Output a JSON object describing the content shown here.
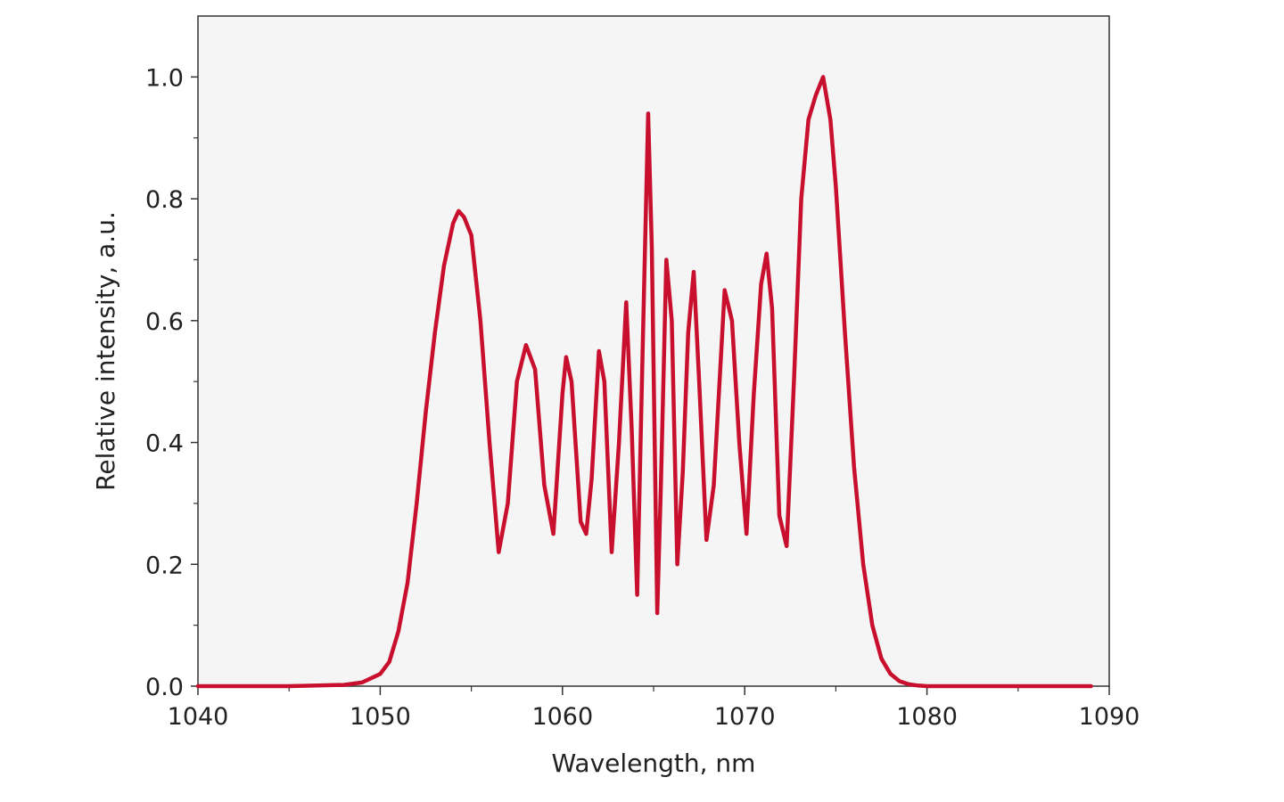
{
  "chart_data": {
    "type": "line",
    "title": "",
    "xlabel": "Wavelength, nm",
    "ylabel": "Relative intensity, a.u.",
    "xlim": [
      1040,
      1090
    ],
    "ylim": [
      0,
      1.1
    ],
    "x_ticks": [
      1040,
      1050,
      1060,
      1070,
      1080,
      1090
    ],
    "x_tick_labels": [
      "1040",
      "1050",
      "1060",
      "1070",
      "1080",
      "1090"
    ],
    "y_ticks": [
      0.0,
      0.2,
      0.4,
      0.6,
      0.8,
      1.0
    ],
    "y_tick_labels": [
      "0.0",
      "0.2",
      "0.4",
      "0.6",
      "0.8",
      "1.0"
    ],
    "grid": false,
    "legend": "none",
    "plot_background": "#f5f5f5",
    "series": [
      {
        "color": "#c8102e",
        "x": [
          1040,
          1045,
          1048,
          1049,
          1050,
          1050.5,
          1051,
          1051.5,
          1052,
          1052.5,
          1053,
          1053.5,
          1054,
          1054.3,
          1054.6,
          1055,
          1055.5,
          1056,
          1056.5,
          1057,
          1057.5,
          1058,
          1058.5,
          1059,
          1059.5,
          1060,
          1060.2,
          1060.5,
          1061,
          1061.3,
          1061.6,
          1062,
          1062.3,
          1062.7,
          1063.1,
          1063.5,
          1063.8,
          1064.1,
          1064.4,
          1064.7,
          1064.9,
          1065.2,
          1065.4,
          1065.7,
          1066,
          1066.3,
          1066.6,
          1066.9,
          1067.2,
          1067.5,
          1067.9,
          1068.3,
          1068.9,
          1069.3,
          1069.7,
          1070.1,
          1070.5,
          1070.9,
          1071.2,
          1071.5,
          1071.9,
          1072.3,
          1072.7,
          1073.1,
          1073.5,
          1073.9,
          1074.3,
          1074.7,
          1075,
          1075.5,
          1076,
          1076.5,
          1077,
          1077.5,
          1078,
          1078.5,
          1079,
          1079.5,
          1080,
          1081,
          1085,
          1089
        ],
        "values": [
          0,
          0,
          0.002,
          0.006,
          0.02,
          0.04,
          0.09,
          0.17,
          0.3,
          0.45,
          0.58,
          0.69,
          0.76,
          0.78,
          0.77,
          0.74,
          0.6,
          0.4,
          0.22,
          0.3,
          0.5,
          0.56,
          0.52,
          0.33,
          0.25,
          0.48,
          0.54,
          0.5,
          0.27,
          0.25,
          0.34,
          0.55,
          0.5,
          0.22,
          0.4,
          0.63,
          0.42,
          0.15,
          0.55,
          0.94,
          0.72,
          0.12,
          0.33,
          0.7,
          0.6,
          0.2,
          0.35,
          0.58,
          0.68,
          0.5,
          0.24,
          0.33,
          0.65,
          0.6,
          0.4,
          0.25,
          0.48,
          0.66,
          0.71,
          0.62,
          0.28,
          0.23,
          0.5,
          0.8,
          0.93,
          0.97,
          1.0,
          0.93,
          0.82,
          0.58,
          0.36,
          0.2,
          0.1,
          0.045,
          0.02,
          0.008,
          0.003,
          0.001,
          0,
          0,
          0,
          0
        ]
      }
    ]
  }
}
